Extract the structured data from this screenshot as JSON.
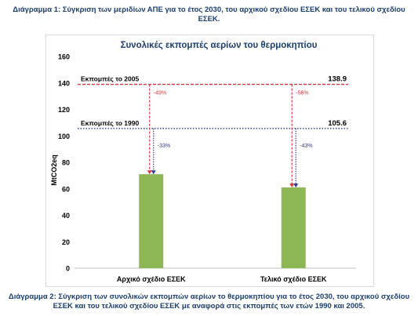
{
  "caption_top": "Διάγραμμα 1: Σύγκριση των μεριδίων ΑΠΕ για το έτος 2030, του αρχικού σχεδίου ΕΣΕΚ και του τελικού σχεδίου ΕΣΕΚ.",
  "caption_bottom": "Διάγραμμα 2: Σύγκριση των συνολικών εκπομπών αερίων το θερμοκηπίου για το έτος 2030, του αρχικού σχεδίου ΕΣΕΚ και του τελικού σχεδίου ΕΣΕΚ με αναφορά στις εκπομπές των ετών 1990 και 2005.",
  "chart_data": {
    "type": "bar",
    "title": "Συνολικές εκπομπές αερίων του θερμοκηπίου",
    "xlabel": "",
    "ylabel": "MtCO2eq",
    "ylim": [
      0,
      160
    ],
    "yticks": [
      0,
      20,
      40,
      60,
      80,
      100,
      120,
      140,
      160
    ],
    "grid": false,
    "categories": [
      "Αρχικό σχέδιο ΕΣΕΚ",
      "Τελικό σχέδιο ΕΣΕΚ"
    ],
    "values": [
      71,
      61
    ],
    "bar_color": "#8db755",
    "reference_lines": [
      {
        "label": "Εκπομπές το 2005",
        "value": 138.9,
        "value_label": "138.9",
        "color": "#d9383a",
        "style": "dashed"
      },
      {
        "label": "Εκπομπές το 1990",
        "value": 105.6,
        "value_label": "105.6",
        "color": "#2e3a8c",
        "style": "dotted"
      }
    ],
    "annotations": [
      {
        "bar": 0,
        "ref": 0,
        "text": "-49%",
        "color": "#d9383a"
      },
      {
        "bar": 1,
        "ref": 0,
        "text": "-56%",
        "color": "#d9383a"
      },
      {
        "bar": 0,
        "ref": 1,
        "text": "-33%",
        "color": "#2e3a8c"
      },
      {
        "bar": 1,
        "ref": 1,
        "text": "-43%",
        "color": "#2e3a8c"
      }
    ]
  }
}
